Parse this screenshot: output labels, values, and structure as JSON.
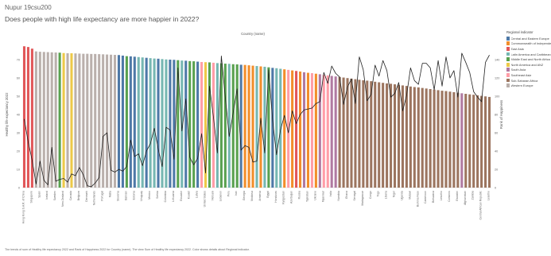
{
  "header": {
    "title": "Nupur 19csu200",
    "subtitle": "Does people with high life expectancy are more happier in 2022?"
  },
  "footer": {
    "note": "The trends of sum of Healthy life expectancy 2022 and Rank of Happiness 2022 for Country (name). The view Sum of Healthy life expectancy 2022. Color shows details about Regional indicator."
  },
  "legend": {
    "title": "Regional indicator",
    "items": [
      {
        "label": "Central and Eastern Europe",
        "color": "#4e79a7"
      },
      {
        "label": "Commonwealth of Independent Sta.",
        "color": "#f28e2b"
      },
      {
        "label": "East Asia",
        "color": "#e15759"
      },
      {
        "label": "Latin America and Caribbean",
        "color": "#76b7b2"
      },
      {
        "label": "Middle East and North Africa",
        "color": "#59a14f"
      },
      {
        "label": "North America and ANZ",
        "color": "#edc948"
      },
      {
        "label": "South Asia",
        "color": "#b07aa1"
      },
      {
        "label": "Southeast Asia",
        "color": "#ff9da7"
      },
      {
        "label": "Sub-Saharan Africa",
        "color": "#9c755f"
      },
      {
        "label": "Western Europe",
        "color": "#bab0ac"
      }
    ]
  },
  "chart_data": {
    "type": "bar",
    "column_header": "Country (name)",
    "ylabel": "Healthy life expectancy 2022",
    "y2label": "Rank of Happiness",
    "ylim": [
      0,
      80
    ],
    "y_ticks": [
      0,
      10,
      20,
      30,
      40,
      50,
      60,
      70
    ],
    "y2lim": [
      0,
      160
    ],
    "y2_ticks": [
      0,
      20,
      40,
      60,
      80,
      100,
      120,
      140
    ],
    "grid": false,
    "legend_position": "right",
    "bar_series": "Healthy life expectancy 2022",
    "line_series": "Rank of Happiness 2022",
    "region_colors": [
      "#4e79a7",
      "#f28e2b",
      "#e15759",
      "#76b7b2",
      "#59a14f",
      "#edc948",
      "#b07aa1",
      "#ff9da7",
      "#9c755f",
      "#bab0ac"
    ],
    "x_tick_labels": [
      "Hong Kong S.A.R. of China",
      "Japan",
      "Singapore",
      "Switzerland",
      "Spain",
      "Norway",
      "Iceland",
      "Cyprus",
      "Sweden",
      "Israel",
      "New Zealand",
      "Luxembourg",
      "Canada",
      "Ireland",
      "Belgium",
      "Germany",
      "Denmark",
      "Finland",
      "Netherlands",
      "Austria",
      "Portugal",
      "Greece",
      "Malta",
      "United Kingdom",
      "Slovenia",
      "Czechia",
      "Bahrain",
      "Croatia",
      "Estonia",
      "Panama",
      "Uruguay",
      "Slovakia",
      "Mexico",
      "Argentina",
      "Serbia",
      "Costa Rica",
      "Colombia",
      "Bosnia and Herzegovina",
      "Lithuania",
      "Jordan",
      "Ecuador",
      "Albania",
      "Kuwait",
      "Saudi Arabia",
      "Latvia",
      "Thailand",
      "United States",
      "Tunisia",
      "Vietnam",
      "Chile",
      "Lebanon",
      "Turkey",
      "Peru",
      "Libya",
      "Iran",
      "Kosovo",
      "Georgia",
      "Kazakhstan",
      "Moldova",
      "Guatemala",
      "Armenia",
      "Brazil",
      "Egypt",
      "Montenegro",
      "Honduras",
      "Paraguay",
      "Kyrgyzstan",
      "Philippines",
      "Azerbaijan",
      "Mongolia",
      "Russia",
      "Nepal",
      "Tajikistan",
      "Indonesia",
      "Ukraine",
      "Bangladesh",
      "Myanmar",
      "Laos",
      "India",
      "Pakistan",
      "Namibia",
      "Gabon",
      "Ghana",
      "Kenya",
      "Senegal",
      "Ethiopia",
      "Madagascar",
      "Gambia",
      "Congo",
      "Rwanda",
      "Togo",
      "Mauritania",
      "Liberia",
      "Tanzania",
      "Niger",
      "Benin",
      "Uganda",
      "Guinea",
      "Malawi",
      "Mali",
      "Burkina Faso",
      "Sierra Leone",
      "Cameroon",
      "Zambia",
      "Botswana",
      "Zimbabwe",
      "Lesotho",
      "Mozambique",
      "Comoros",
      "Chad",
      "Eswatini",
      "Nigeria",
      "Afghanistan",
      "Ivory Coast",
      "Zambia ",
      "Guinea-Bissau",
      "Central African Republic",
      "Sudan",
      "Lesotho "
    ],
    "region_index": [
      2,
      2,
      2,
      9,
      9,
      9,
      9,
      9,
      9,
      4,
      5,
      9,
      5,
      9,
      9,
      9,
      9,
      9,
      9,
      9,
      9,
      9,
      9,
      9,
      0,
      0,
      4,
      0,
      0,
      3,
      3,
      0,
      3,
      3,
      0,
      3,
      3,
      0,
      0,
      4,
      3,
      0,
      4,
      4,
      0,
      7,
      5,
      4,
      7,
      3,
      4,
      4,
      3,
      4,
      4,
      0,
      1,
      1,
      1,
      3,
      1,
      3,
      4,
      0,
      3,
      3,
      1,
      7,
      1,
      2,
      1,
      6,
      1,
      7,
      1,
      6,
      7,
      7,
      6,
      6,
      8,
      8,
      8,
      8,
      8,
      8,
      8,
      8,
      8,
      8,
      8,
      8,
      8,
      8,
      8,
      8,
      8,
      8,
      8,
      8,
      8,
      8,
      8,
      8,
      8,
      8,
      8,
      8,
      8,
      8,
      8,
      6,
      8,
      8,
      8,
      8,
      8,
      8,
      8
    ],
    "healthy_life_expectancy": [
      77.3,
      76.9,
      76.0,
      74.5,
      74.3,
      74.2,
      74.1,
      74.0,
      73.9,
      73.8,
      73.6,
      73.5,
      73.5,
      73.4,
      73.3,
      73.2,
      73.2,
      73.1,
      73.1,
      73.0,
      72.9,
      72.8,
      72.7,
      72.6,
      72.5,
      72.2,
      71.9,
      71.8,
      71.6,
      71.4,
      71.2,
      71.0,
      70.8,
      70.6,
      70.5,
      70.3,
      70.1,
      70.0,
      69.9,
      69.7,
      69.5,
      69.4,
      69.2,
      69.1,
      68.9,
      68.7,
      68.6,
      68.5,
      68.3,
      68.1,
      68.0,
      67.8,
      67.7,
      67.5,
      67.4,
      67.2,
      67.1,
      66.9,
      66.7,
      66.5,
      66.3,
      66.1,
      65.8,
      65.5,
      65.3,
      65.0,
      64.7,
      64.4,
      64.1,
      63.8,
      63.5,
      63.1,
      62.8,
      62.6,
      62.3,
      62.0,
      61.7,
      61.4,
      61.1,
      60.8,
      60.5,
      60.2,
      59.9,
      59.6,
      59.3,
      59.0,
      58.7,
      58.5,
      58.2,
      57.9,
      57.6,
      57.3,
      57.0,
      56.8,
      56.5,
      56.2,
      55.9,
      55.6,
      55.3,
      55.0,
      54.8,
      54.5,
      54.2,
      53.9,
      53.6,
      53.3,
      53.0,
      52.8,
      52.5,
      52.2,
      51.9,
      51.6,
      51.3,
      51.0,
      50.8,
      50.5,
      50.2,
      49.9,
      49.6
    ],
    "happiness_rank": [
      75,
      50,
      30,
      4,
      29,
      8,
      3,
      44,
      7,
      9,
      10,
      6,
      15,
      13,
      22,
      14,
      2,
      1,
      5,
      11,
      56,
      60,
      19,
      17,
      20,
      18,
      23,
      52,
      34,
      37,
      24,
      40,
      48,
      65,
      42,
      23,
      66,
      63,
      31,
      131,
      62,
      97,
      33,
      25,
      32,
      59,
      16,
      111,
      77,
      38,
      144,
      99,
      56,
      82,
      108,
      41,
      46,
      44,
      28,
      29,
      76,
      38,
      129,
      74,
      36,
      63,
      79,
      60,
      84,
      70,
      80,
      85,
      86,
      87,
      92,
      94,
      126,
      114,
      133,
      125,
      121,
      91,
      110,
      119,
      92,
      143,
      129,
      95,
      102,
      134,
      122,
      139,
      128,
      99,
      103,
      115,
      84,
      101,
      131,
      117,
      113,
      136,
      136,
      131,
      107,
      139,
      111,
      143,
      120,
      128,
      99,
      147,
      137,
      126,
      105,
      99,
      94,
      137,
      145
    ],
    "happiness_rank_values_note": ""
  }
}
